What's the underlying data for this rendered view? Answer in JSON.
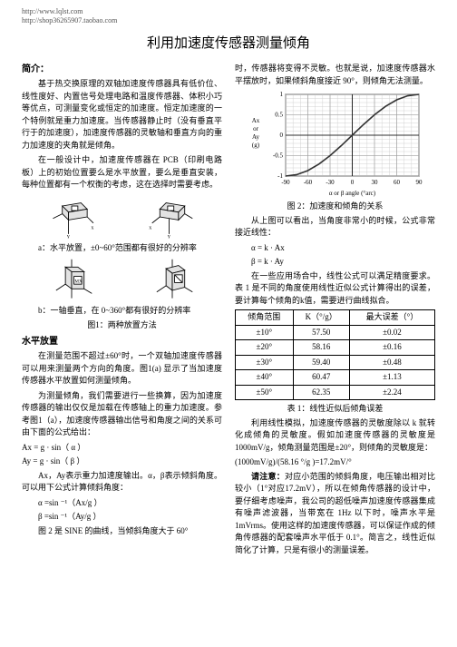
{
  "urls": [
    "http://www.lqlst.com",
    "http://shop36265907.taobao.com"
  ],
  "title": "利用加速度传感器测量倾角",
  "intro_head": "简介：",
  "intro_p1": "基于热交换原理的双轴加速度传感器具有低价位、线性度好、内置信号处理电路和温度传感器、体积小巧等优点，可测量变化或恒定的加速度。恒定加速度的一个特例就是重力加速度。当传感器静止时（没有垂直平行于的加速度），加速度传感器的灵敏轴和垂直方向的重力加速度的夹角就是倾角。",
  "intro_p2": "在一般设计中，加速度传感器在 PCB（印刷电路板）上的初始位置要么是水平放置，要么是垂直安装，每种位置都有一个权衡的考虑，这在选择时需要考虑。",
  "fig1a_caption": "a：水平放置，±0~60°范围都有很好的分辨率",
  "fig1b_caption": "b：一轴垂直，在 0~360°都有很好的分辨率",
  "fig1_label": "图1：两种放置方法",
  "hplace_head": "水平放置",
  "hplace_p1": "在测量范围不超过±60°时，一个双轴加速度传感器可以用来测量两个方向的角度。图1(a) 显示了当加速度传感器水平放置如何测量倾角。",
  "hplace_p2": "为测量倾角，我们需要进行一些换算，因为加速度传感器的输出仅仅是加载在传感轴上的重力加速度。参考图1（a），加速度传感器输出信号和角度之间的关系可由下面的公式给出：",
  "eq_ax": "Ax = g · sin（ α ）",
  "eq_ay": "Ay = g · sin（ β ）",
  "hplace_p3": "Ax，Ay表示重力加速度输出。α，β表示倾斜角度。可以用下公式计算倾斜角度：",
  "eq_alpha": "α =sin ⁻¹（Ax/g ）",
  "eq_beta": "β =sin ⁻¹（Ay/g ）",
  "hplace_p4": "图 2 是 SINE 的曲线，当倾斜角度大于 60°",
  "right_p1": "时，传感器将变得不灵敏。也就是说，加速度传感器水平摆放时，如果倾斜角度接近 90°，则倾角无法测量。",
  "chart": {
    "type": "line",
    "xlabel": "α or β angle (°arc)",
    "ylabels": [
      "Ax",
      "or",
      "Ay",
      "(g)"
    ],
    "xlim": [
      -90,
      90
    ],
    "xtick_step": 30,
    "ylim": [
      -1,
      1
    ],
    "ytick_step": 0.5,
    "grid_color": "#c8c8c8",
    "line_color": "#333333",
    "background": "#ffffff",
    "series": [
      {
        "x": -90,
        "y": -1.0
      },
      {
        "x": -75,
        "y": -0.966
      },
      {
        "x": -60,
        "y": -0.866
      },
      {
        "x": -45,
        "y": -0.707
      },
      {
        "x": -30,
        "y": -0.5
      },
      {
        "x": -15,
        "y": -0.259
      },
      {
        "x": 0,
        "y": 0
      },
      {
        "x": 15,
        "y": 0.259
      },
      {
        "x": 30,
        "y": 0.5
      },
      {
        "x": 45,
        "y": 0.707
      },
      {
        "x": 60,
        "y": 0.866
      },
      {
        "x": 75,
        "y": 0.966
      },
      {
        "x": 90,
        "y": 1.0
      }
    ]
  },
  "fig2_label": "图 2：加速度和倾角的关系",
  "right_p2": "从上图可以看出，当角度非常小的时候，公式非常接近线性：",
  "eq_lin1": "α = k · Ax",
  "eq_lin2": "β = k · Ay",
  "right_p3": "在一些应用场合中，线性公式可以满足精度要求。表 1 是不同的角度使用线性近似公式计算得出的误差，要计算每个倾角的k值，需要进行曲线拟合。",
  "table": {
    "columns": [
      "倾角范围",
      "K（°/g）",
      "最大误差（°）"
    ],
    "rows": [
      [
        "±10°",
        "57.50",
        "±0.02"
      ],
      [
        "±20°",
        "58.16",
        "±0.16"
      ],
      [
        "±30°",
        "59.40",
        "±0.48"
      ],
      [
        "±40°",
        "60.47",
        "±1.13"
      ],
      [
        "±50°",
        "62.35",
        "±2.24"
      ]
    ]
  },
  "tbl_caption": "表 1：线性近似后倾角误差",
  "right_p4": "利用线性模拟，加速度传感器的灵敏度除以 k 就转化成倾角的灵敏度。假如加速度传感器的灵敏度是 1000mV/g，倾角测量范围是±20°，则倾角的灵敏度是：",
  "eq_sens": "(1000mV/g)/(58.16 °/g )=17.2mV/°",
  "note_head": "请注意：",
  "right_p5": "对应小范围的倾斜角度，电压输出相对比较小（1°对应17.2mV），所以在倾角传感器的设计中，要仔细考虑噪声，我公司的超低噪声加速度传感器集成有噪声滤波器，当带宽在 1Hz 以下时，噪声水平是 1mVrms。使用这样的加速度传感器，可以保证作成的倾角传感器的配套噪声水平低于 0.1°。简言之，线性近似简化了计算，只是有很小的测量误差。"
}
